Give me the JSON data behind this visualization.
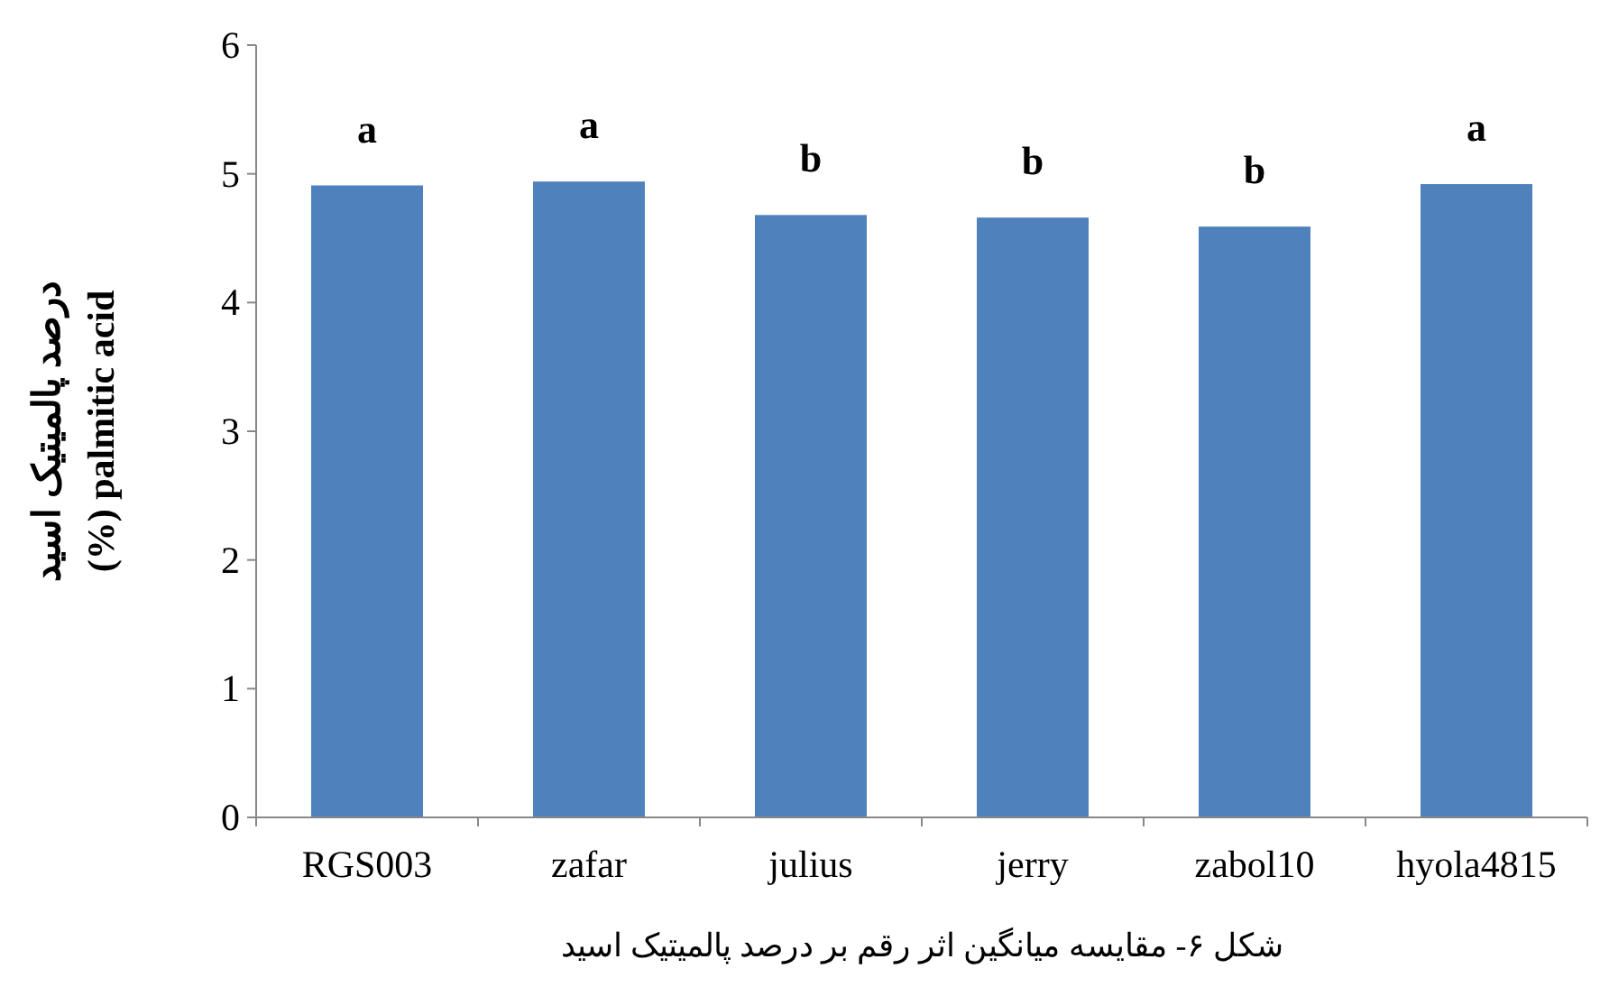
{
  "chart_data": {
    "type": "bar",
    "ylabel": "درصد پالمیتیک اسید\n(%) palmitic acid",
    "categories": [
      "RGS003",
      "zafar",
      "julius",
      "jerry",
      "zabol10",
      "hyola4815"
    ],
    "values": [
      4.91,
      4.94,
      4.68,
      4.66,
      4.59,
      4.92
    ],
    "color": "#4f81bd",
    "ylim": [
      0,
      6
    ],
    "yticks": [
      0,
      1,
      2,
      3,
      4,
      5,
      6
    ],
    "grid": false,
    "annotations": [
      {
        "text": "a",
        "x": "RGS003",
        "y": 4.91
      },
      {
        "text": "a",
        "x": "zafar",
        "y": 4.94
      },
      {
        "text": "b",
        "x": "julius",
        "y": 4.68
      },
      {
        "text": "b",
        "x": "jerry",
        "y": 4.66
      },
      {
        "text": "b",
        "x": "zabol10",
        "y": 4.59
      },
      {
        "text": "a",
        "x": "hyola4815",
        "y": 4.92
      },
      "شکل ۶- مقایسه میانگین اثر رقم بر درصد پالمیتیک اسید"
    ]
  }
}
